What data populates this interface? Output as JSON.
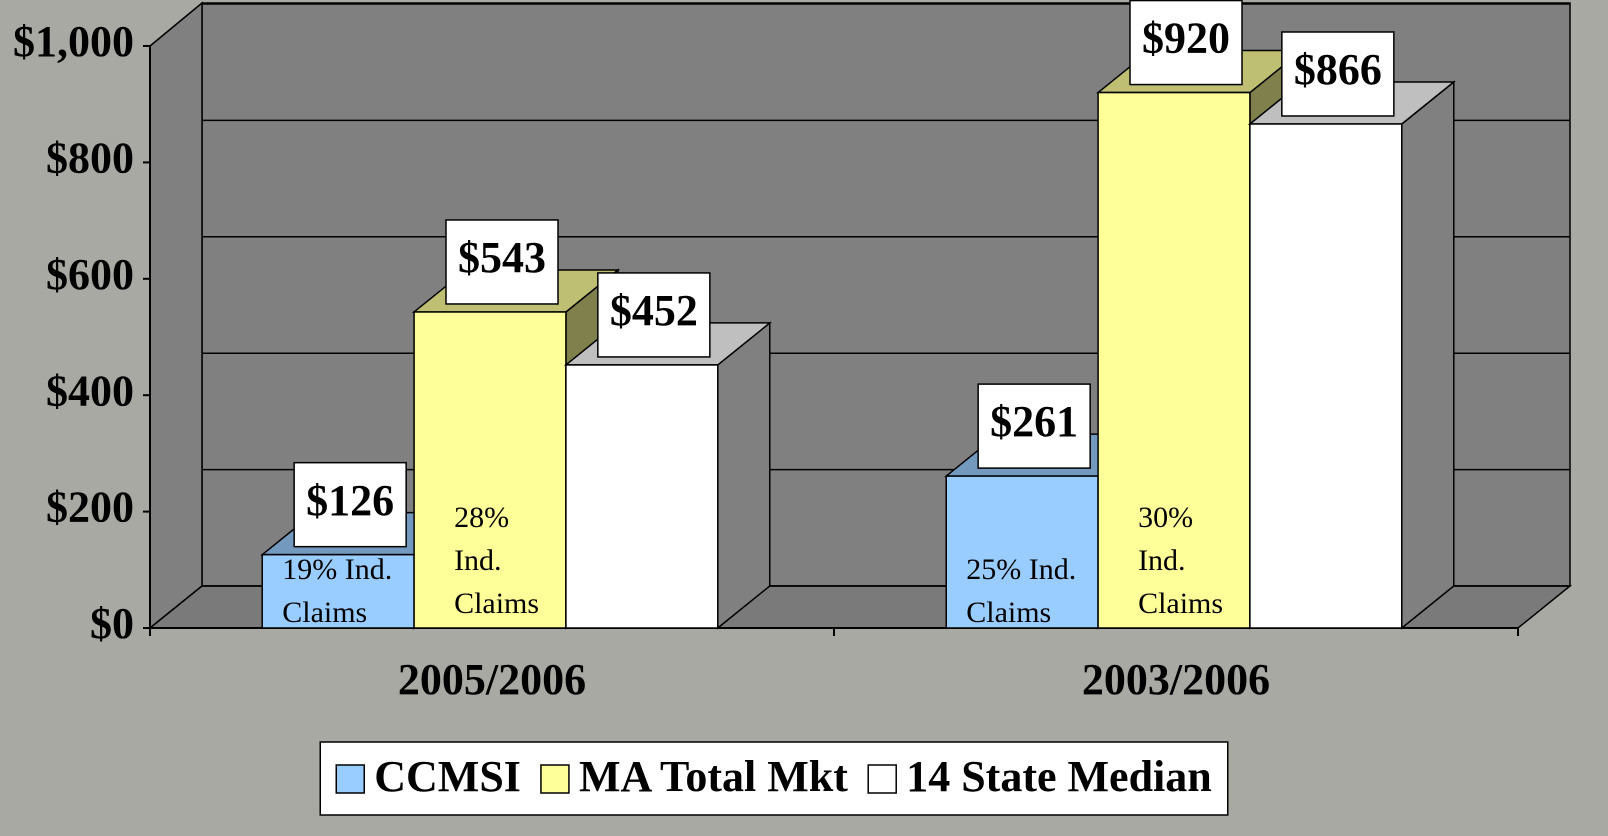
{
  "chart_data": {
    "type": "bar3d",
    "categories": [
      "2005/2006",
      "2003/2006"
    ],
    "series": [
      {
        "name": "CCMSI",
        "color": "#99ccff",
        "values": [
          126,
          261
        ],
        "value_labels": [
          "$126",
          "$261"
        ]
      },
      {
        "name": "MA Total Mkt",
        "color": "#ffff99",
        "values": [
          543,
          920
        ],
        "value_labels": [
          "$543",
          "$920"
        ]
      },
      {
        "name": "14 State Median",
        "color": "#ffffff",
        "values": [
          452,
          866
        ],
        "value_labels": [
          "$452",
          "$866"
        ]
      }
    ],
    "ylim": [
      0,
      1000
    ],
    "yticks": [
      {
        "value": 0,
        "label": "$0"
      },
      {
        "value": 200,
        "label": "$200"
      },
      {
        "value": 400,
        "label": "$400"
      },
      {
        "value": 600,
        "label": "$600"
      },
      {
        "value": 800,
        "label": "$800"
      },
      {
        "value": 1000,
        "label": "$1,000"
      }
    ],
    "grid": true,
    "legend": "bottom",
    "annotations": [
      {
        "lines": [
          "19% Ind.",
          "Claims"
        ]
      },
      {
        "lines": [
          "28%",
          "Ind.",
          "Claims"
        ]
      },
      {
        "lines": [
          "25% Ind.",
          "Claims"
        ]
      },
      {
        "lines": [
          "30%",
          "Ind.",
          "Claims"
        ]
      }
    ]
  }
}
